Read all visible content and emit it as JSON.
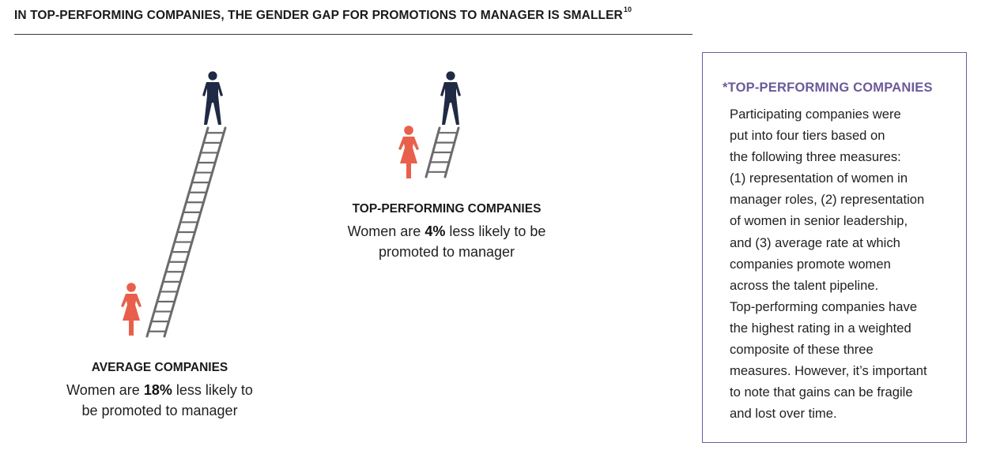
{
  "title": {
    "text": "IN TOP-PERFORMING COMPANIES, THE GENDER GAP FOR PROMOTIONS TO MANAGER IS SMALLER",
    "footnote": "10"
  },
  "average": {
    "heading": "AVERAGE COMPANIES",
    "line1_pre": "Women are ",
    "percent": "18%",
    "line1_post": " less likely to",
    "line2": "be promoted to manager"
  },
  "top_performing": {
    "heading": "TOP-PERFORMING COMPANIES",
    "line1_pre": "Women are ",
    "percent": "4%",
    "line1_post": " less likely to be",
    "line2": "promoted to manager"
  },
  "sidebar": {
    "title": "*TOP-PERFORMING COMPANIES",
    "lines": [
      "Participating companies were",
      "put into four tiers based on",
      "the following three measures:",
      "(1) representation of women in",
      "manager roles, (2) representation",
      "of women in senior leadership,",
      "and (3) average rate at which",
      "companies promote women",
      "across the talent pipeline.",
      "Top-performing companies have",
      "the highest rating in a weighted",
      "composite of these three",
      "measures. However, it’s important",
      "to note that gains can be fragile",
      "and lost over time."
    ]
  },
  "colors": {
    "man": "#1f2a44",
    "woman": "#e8604c",
    "ladder": "#6b6b6b",
    "sidebar_accent": "#6b5a9a"
  },
  "icons": {
    "man": "man-icon",
    "woman": "woman-icon",
    "ladder": "ladder-icon"
  }
}
